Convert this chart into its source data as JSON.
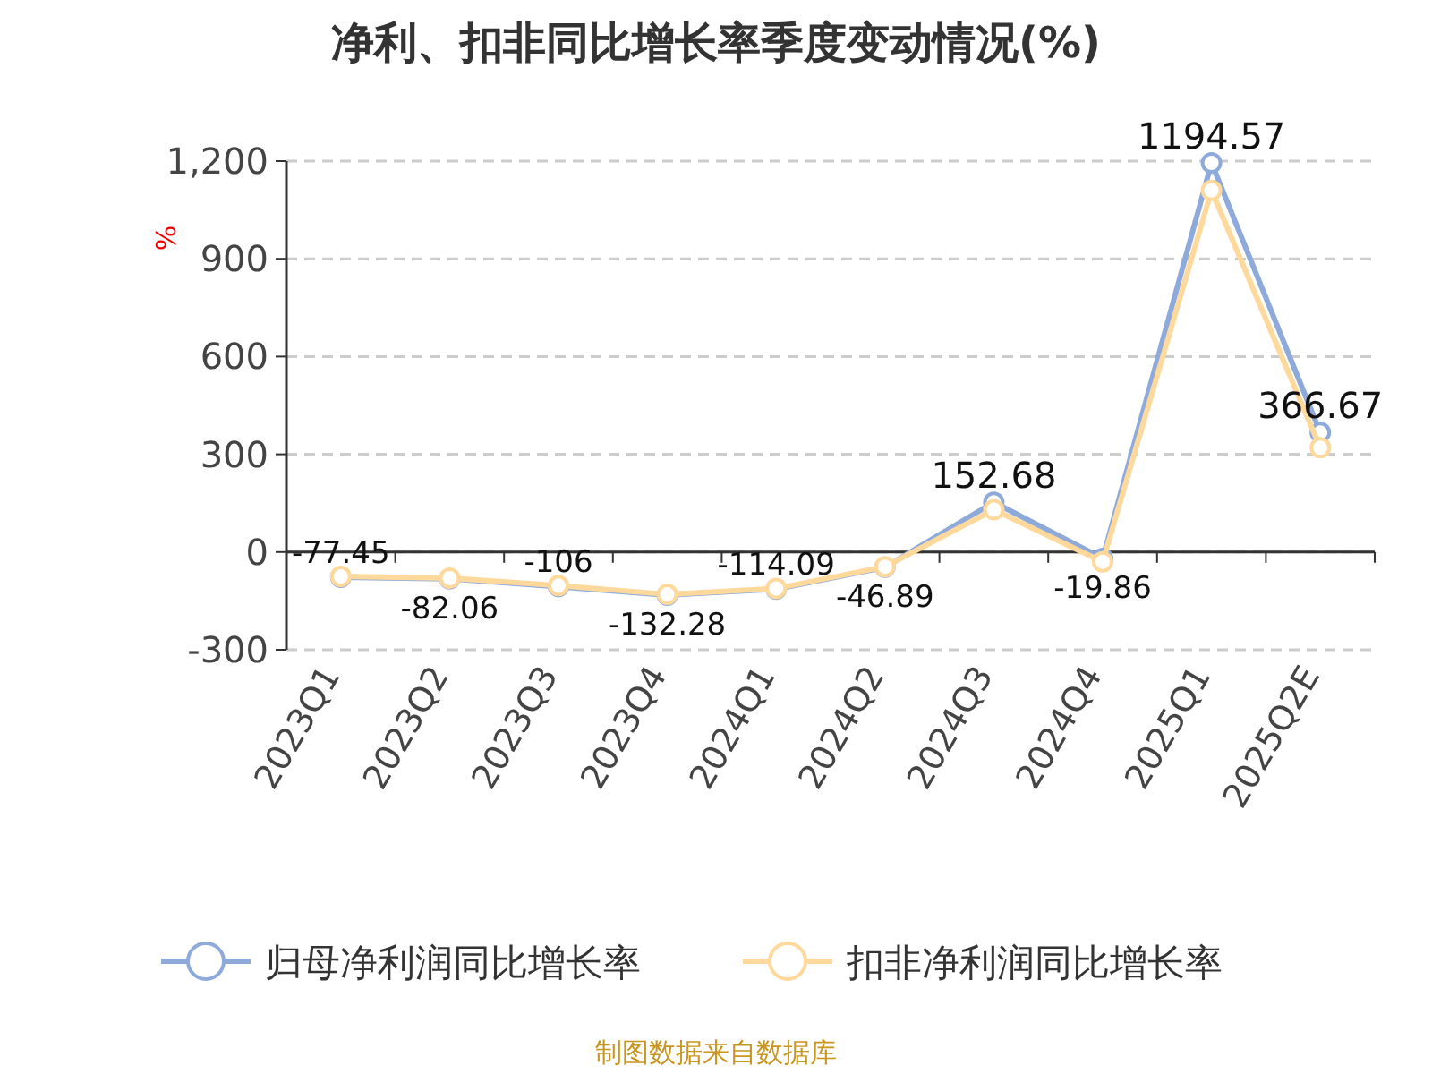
{
  "chart_data": {
    "type": "line",
    "title": "净利、扣非同比增长率季度变动情况(%)",
    "ylabel": "%",
    "categories": [
      "2023Q1",
      "2023Q2",
      "2023Q3",
      "2023Q4",
      "2024Q1",
      "2024Q2",
      "2024Q3",
      "2024Q4",
      "2025Q1",
      "2025Q2E"
    ],
    "series": [
      {
        "name": "归母净利润同比增长率",
        "color": "#8eaadb",
        "values": [
          -77.45,
          -82.06,
          -106,
          -132.28,
          -114.09,
          -46.89,
          152.68,
          -19.86,
          1194.57,
          366.67
        ],
        "value_labels": [
          "-77.45",
          "-82.06",
          "-106",
          "-132.28",
          "-114.09",
          "-46.89",
          "152.68",
          "-19.86",
          "1194.57",
          "366.67"
        ]
      },
      {
        "name": "扣非净利润同比增长率",
        "color": "#ffd89b",
        "values": [
          -75,
          -80,
          -103,
          -130,
          -112,
          -45,
          130,
          -30,
          1110,
          320
        ]
      }
    ],
    "ylim": [
      -300,
      1200
    ],
    "yticks": [
      {
        "value": -300,
        "label": "-300"
      },
      0,
      300,
      600,
      900,
      {
        "value": 1200,
        "label": "1,200"
      }
    ],
    "grid": "y",
    "legend": "bottom",
    "marker": "circle",
    "line_style": "solid",
    "annotations": [
      "制图数据来自数据库"
    ]
  }
}
